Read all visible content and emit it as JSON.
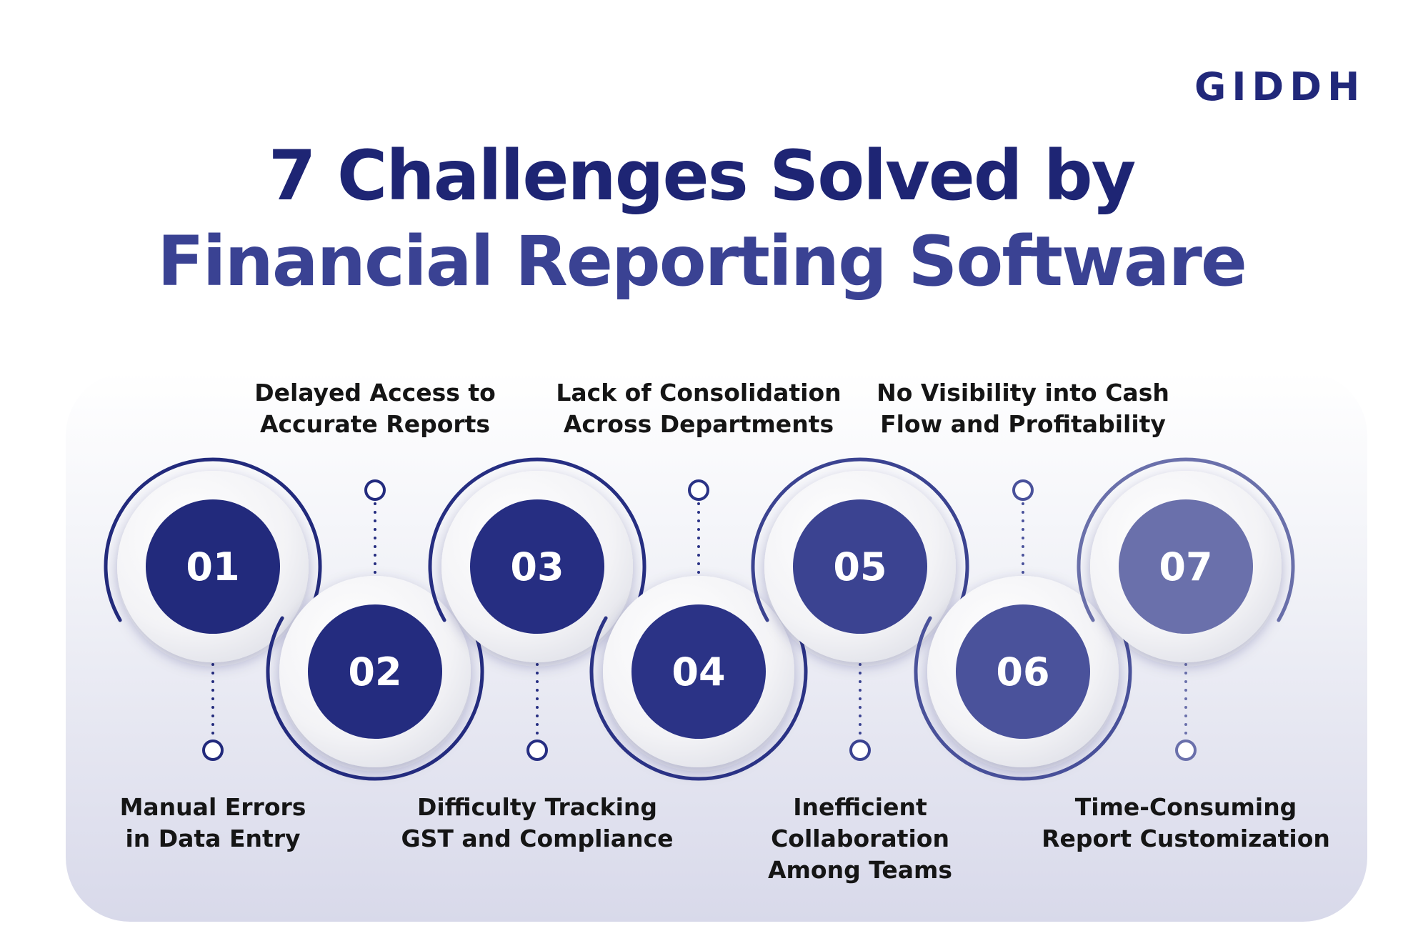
{
  "brand": {
    "logo_text": "GIDDH",
    "color": "#21287a"
  },
  "title": {
    "line1": "7 Challenges Solved by",
    "line2": "Financial Reporting Software"
  },
  "colors": {
    "title_line1": "#1e2574",
    "title_line2": "#3a4293",
    "label_text": "#151515"
  },
  "steps": [
    {
      "number": "01",
      "label": "Manual Errors\nin Data Entry",
      "label_position": "bottom",
      "color": "#222a7c"
    },
    {
      "number": "02",
      "label": "Delayed Access to\nAccurate Reports",
      "label_position": "top",
      "color": "#242c7f"
    },
    {
      "number": "03",
      "label": "Difficulty Tracking\nGST and Compliance",
      "label_position": "bottom",
      "color": "#262e82"
    },
    {
      "number": "04",
      "label": "Lack of Consolidation\nAcross Departments",
      "label_position": "top",
      "color": "#2b3386"
    },
    {
      "number": "05",
      "label": "Inefficient Collaboration\nAmong Teams",
      "label_position": "bottom",
      "color": "#3b4391"
    },
    {
      "number": "06",
      "label": "No Visibility into Cash\nFlow and Profitability",
      "label_position": "top",
      "color": "#4a529b"
    },
    {
      "number": "07",
      "label": "Time-Consuming\nReport Customization",
      "label_position": "bottom",
      "color": "#6a70ab"
    }
  ]
}
